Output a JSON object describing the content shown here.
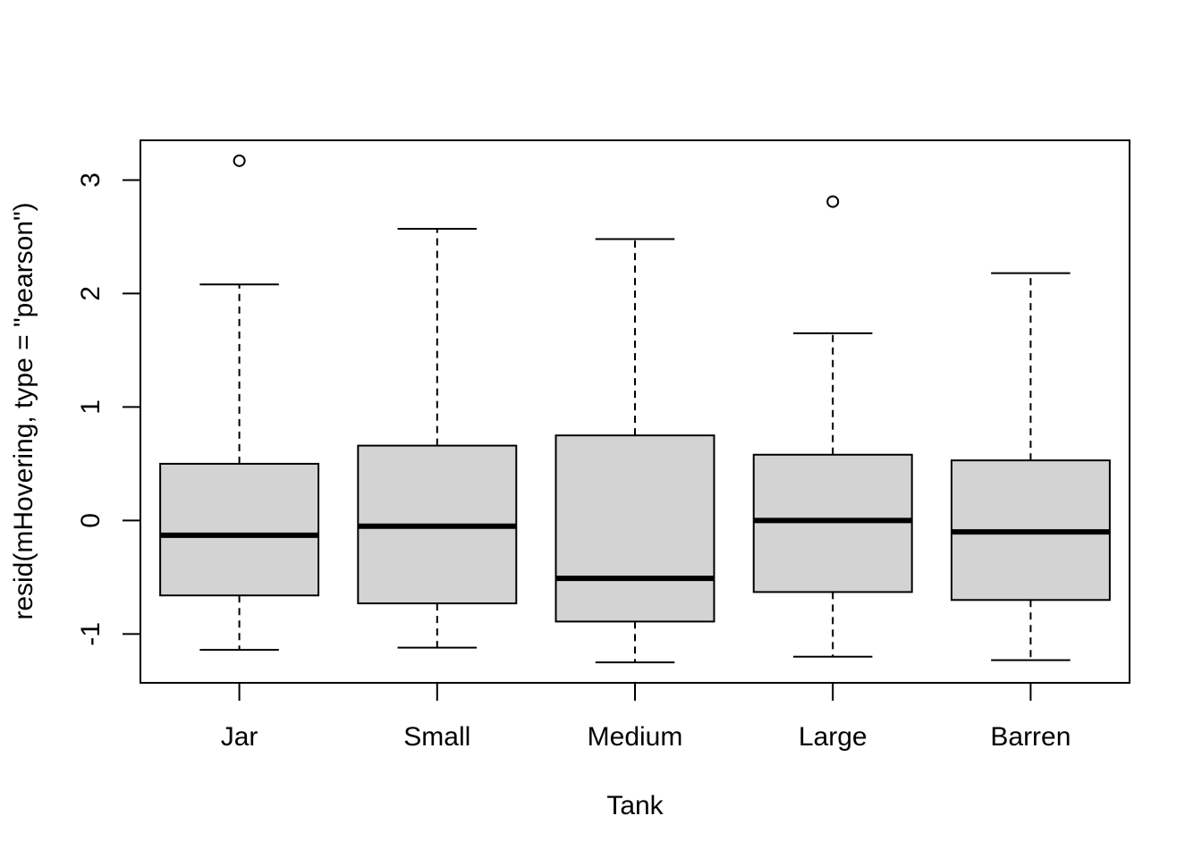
{
  "chart_data": {
    "type": "boxplot",
    "title": "",
    "xlabel": "Tank",
    "ylabel": "resid(mHovering, type = \"pearson\")",
    "categories": [
      "Jar",
      "Small",
      "Medium",
      "Large",
      "Barren"
    ],
    "boxes": [
      {
        "category": "Jar",
        "whisker_low": -1.14,
        "q1": -0.66,
        "median": -0.13,
        "q3": 0.5,
        "whisker_high": 2.08,
        "outliers": [
          3.17
        ]
      },
      {
        "category": "Small",
        "whisker_low": -1.12,
        "q1": -0.73,
        "median": -0.05,
        "q3": 0.66,
        "whisker_high": 2.57,
        "outliers": []
      },
      {
        "category": "Medium",
        "whisker_low": -1.25,
        "q1": -0.89,
        "median": -0.51,
        "q3": 0.75,
        "whisker_high": 2.48,
        "outliers": []
      },
      {
        "category": "Large",
        "whisker_low": -1.2,
        "q1": -0.63,
        "median": 0.0,
        "q3": 0.58,
        "whisker_high": 1.65,
        "outliers": [
          2.81
        ]
      },
      {
        "category": "Barren",
        "whisker_low": -1.23,
        "q1": -0.7,
        "median": -0.1,
        "q3": 0.53,
        "whisker_high": 2.18,
        "outliers": []
      }
    ],
    "yticks": [
      -1,
      0,
      1,
      2,
      3
    ],
    "ylim": [
      -1.43,
      3.35
    ],
    "box_fill": "#d3d3d3",
    "grid": false,
    "legend": "none"
  }
}
